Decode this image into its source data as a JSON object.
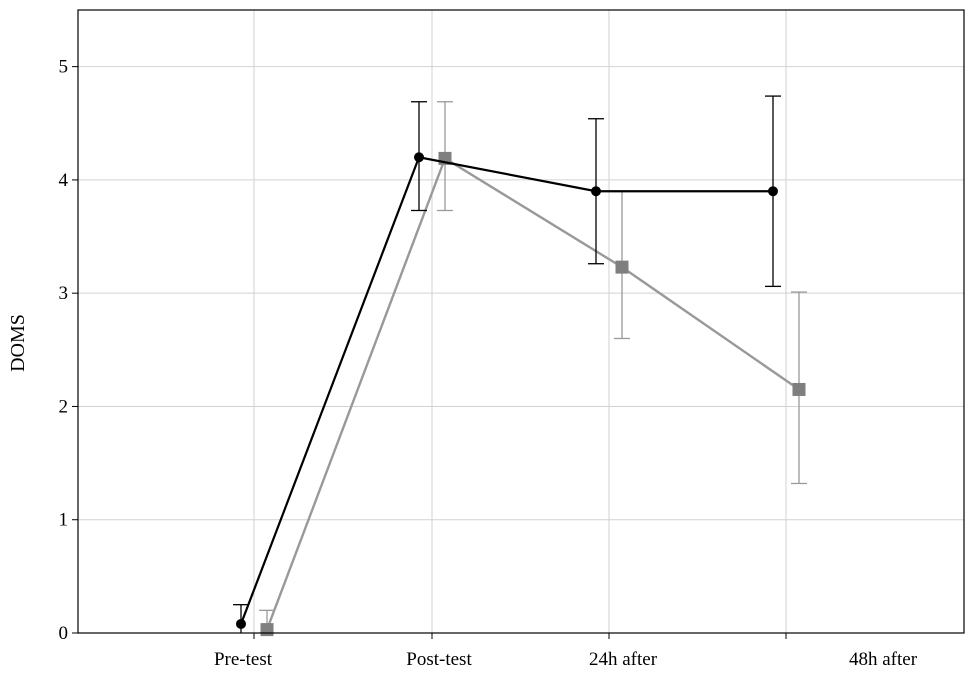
{
  "chart_data": {
    "type": "line",
    "title": "",
    "xlabel": "",
    "ylabel": "DOMS",
    "ylim": [
      0,
      5.5
    ],
    "yticks": [
      0,
      1,
      2,
      3,
      4,
      5
    ],
    "categories": [
      "Pre-test",
      "Post-test",
      "24h after",
      "48h after"
    ],
    "grid": true,
    "legend": "none",
    "series": [
      {
        "color": "#000000",
        "marker": "circle",
        "values": [
          0.08,
          4.2,
          3.9,
          3.9
        ],
        "error_low": [
          0.0,
          3.73,
          3.26,
          3.06
        ],
        "error_high": [
          0.25,
          4.69,
          4.54,
          4.74
        ]
      },
      {
        "color": "#999999",
        "marker": "square",
        "values": [
          0.03,
          4.19,
          3.23,
          2.15
        ],
        "error_low": [
          0.0,
          3.73,
          2.6,
          1.32
        ],
        "error_high": [
          0.2,
          4.69,
          3.9,
          3.01
        ]
      }
    ]
  }
}
